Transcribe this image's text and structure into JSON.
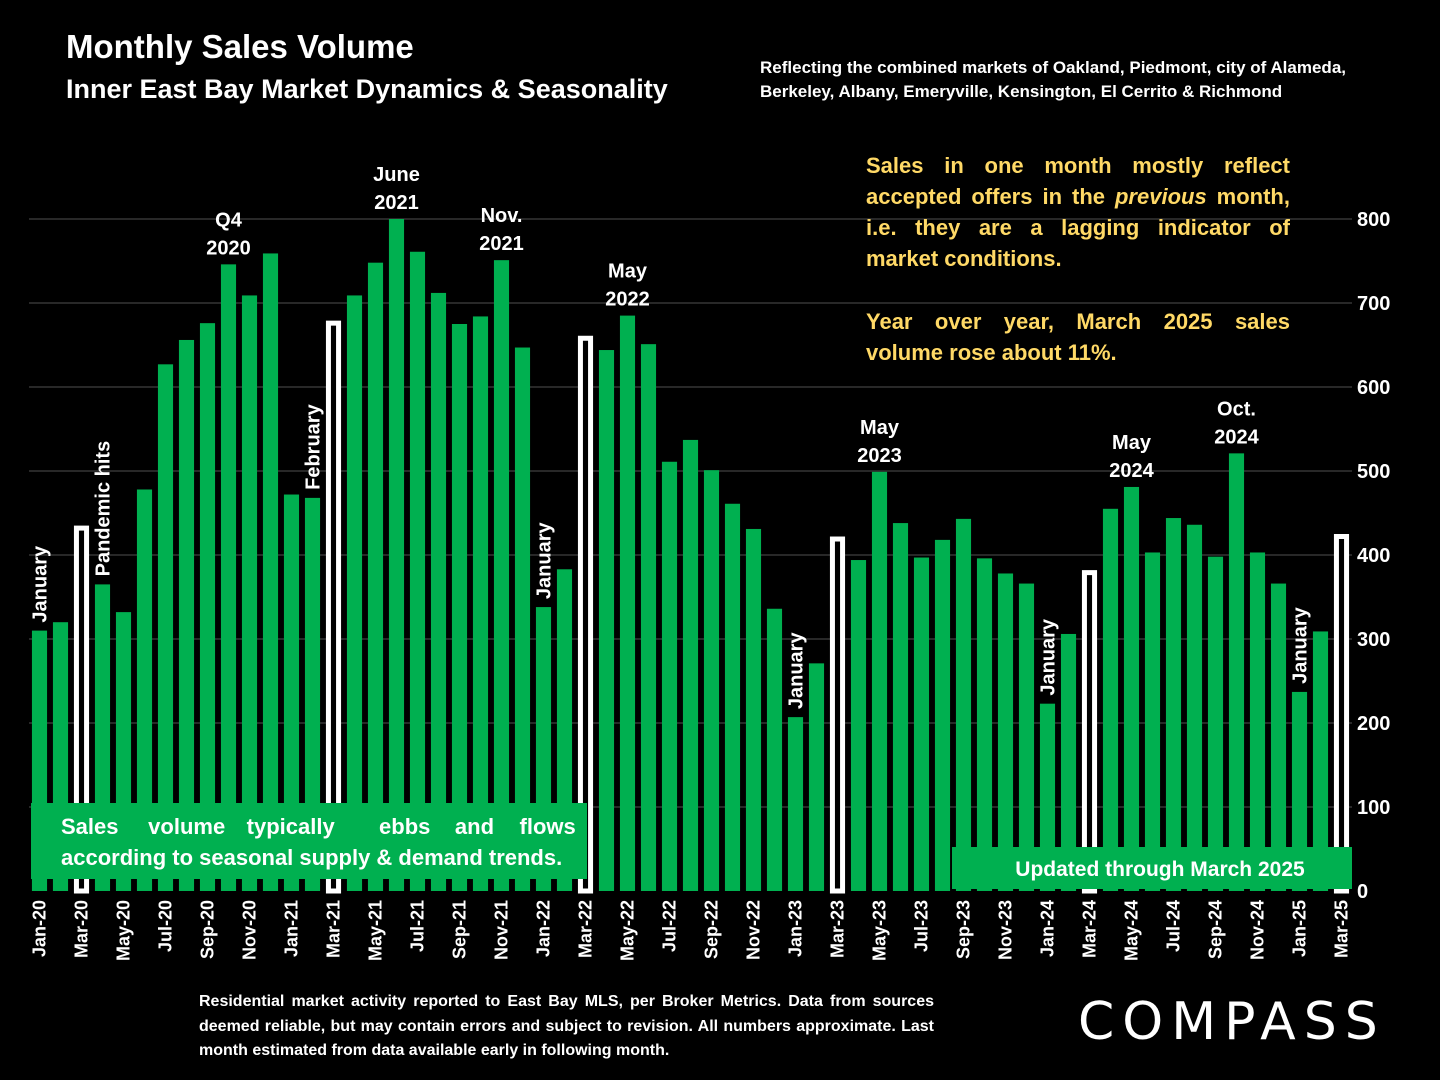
{
  "header": {
    "title": "Monthly Sales Volume",
    "subtitle": "Inner East Bay Market Dynamics & Seasonality",
    "coverage_note": "Reflecting the combined markets of Oakland, Piedmont, city of Alameda, Berkeley, Albany, Emeryville, Kensington, El Cerrito & Richmond"
  },
  "notes": {
    "lag_before": "Sales in one month mostly reflect accepted offers in the ",
    "lag_italic": "previous",
    "lag_after": " month, i.e. they are a lagging indicator of market conditions.",
    "yoy": "Year over year, March 2025 sales volume rose about 11%."
  },
  "footer": {
    "source": "Residential market activity reported to East Bay MLS, per Broker Metrics. Data from sources deemed reliable, but may contain errors and subject to revision. All numbers approximate. Last month estimated from data available early in following month.",
    "logo": "COMPASS"
  },
  "colors": {
    "bar": "#00B050",
    "highlight_outline": "#FFFFFF",
    "note_text": "#FFD966",
    "background": "#000000",
    "gridline": "#404040"
  },
  "chart_data": {
    "type": "bar",
    "ylim": [
      0,
      800
    ],
    "yticks": [
      0,
      100,
      200,
      300,
      400,
      500,
      600,
      700,
      800
    ],
    "grid": true,
    "y_axis_side": "right",
    "categories": [
      "Jan-20",
      "Feb-20",
      "Mar-20",
      "Apr-20",
      "May-20",
      "Jun-20",
      "Jul-20",
      "Aug-20",
      "Sep-20",
      "Oct-20",
      "Nov-20",
      "Dec-20",
      "Jan-21",
      "Feb-21",
      "Mar-21",
      "Apr-21",
      "May-21",
      "Jun-21",
      "Jul-21",
      "Aug-21",
      "Sep-21",
      "Oct-21",
      "Nov-21",
      "Dec-21",
      "Jan-22",
      "Feb-22",
      "Mar-22",
      "Apr-22",
      "May-22",
      "Jun-22",
      "Jul-22",
      "Aug-22",
      "Sep-22",
      "Oct-22",
      "Nov-22",
      "Dec-22",
      "Jan-23",
      "Feb-23",
      "Mar-23",
      "Apr-23",
      "May-23",
      "Jun-23",
      "Jul-23",
      "Aug-23",
      "Sep-23",
      "Oct-23",
      "Nov-23",
      "Dec-23",
      "Jan-24",
      "Feb-24",
      "Mar-24",
      "Apr-24",
      "May-24",
      "Jun-24",
      "Jul-24",
      "Aug-24",
      "Sep-24",
      "Oct-24",
      "Nov-24",
      "Dec-24",
      "Jan-25",
      "Feb-25",
      "Mar-25"
    ],
    "x_tick_labels": [
      "Jan-20",
      "Mar-20",
      "May-20",
      "Jul-20",
      "Sep-20",
      "Nov-20",
      "Jan-21",
      "Mar-21",
      "May-21",
      "Jul-21",
      "Sep-21",
      "Nov-21",
      "Jan-22",
      "Mar-22",
      "May-22",
      "Jul-22",
      "Sep-22",
      "Nov-22",
      "Jan-23",
      "Mar-23",
      "May-23",
      "Jul-23",
      "Sep-23",
      "Nov-23",
      "Jan-24",
      "Mar-24",
      "May-24",
      "Jul-24",
      "Sep-24",
      "Nov-24",
      "Jan-25",
      "Mar-25"
    ],
    "values": [
      310,
      320,
      435,
      365,
      332,
      478,
      627,
      656,
      676,
      746,
      709,
      759,
      472,
      468,
      679,
      709,
      748,
      800,
      761,
      712,
      675,
      684,
      751,
      647,
      338,
      383,
      661,
      644,
      685,
      651,
      511,
      537,
      501,
      461,
      431,
      336,
      207,
      271,
      422,
      394,
      499,
      438,
      397,
      418,
      443,
      396,
      378,
      366,
      223,
      306,
      382,
      455,
      481,
      403,
      444,
      436,
      398,
      521,
      403,
      366,
      237,
      309,
      425
    ],
    "highlighted_categories": [
      "Mar-20",
      "Mar-21",
      "Mar-22",
      "Mar-23",
      "Mar-24",
      "Mar-25"
    ],
    "annotations": [
      {
        "label": "January",
        "category": "Jan-20",
        "rotated": true
      },
      {
        "label": "Pandemic hits",
        "category": "Apr-20",
        "rotated": true
      },
      {
        "label": "Q4\n2020",
        "category": "Oct-20",
        "rotated": false
      },
      {
        "label": "February",
        "category": "Feb-21",
        "rotated": true
      },
      {
        "label": "June\n2021",
        "category": "Jun-21",
        "rotated": false
      },
      {
        "label": "Nov.\n2021",
        "category": "Nov-21",
        "rotated": false
      },
      {
        "label": "January",
        "category": "Jan-22",
        "rotated": true
      },
      {
        "label": "May\n2022",
        "category": "May-22",
        "rotated": false
      },
      {
        "label": "January",
        "category": "Jan-23",
        "rotated": true
      },
      {
        "label": "May\n2023",
        "category": "May-23",
        "rotated": false
      },
      {
        "label": "January",
        "category": "Jan-24",
        "rotated": true
      },
      {
        "label": "May\n2024",
        "category": "May-24",
        "rotated": false
      },
      {
        "label": "Oct.\n2024",
        "category": "Oct-24",
        "rotated": false
      },
      {
        "label": "January",
        "category": "Jan-25",
        "rotated": true
      }
    ],
    "callouts": {
      "seasonal": "Sales volume typically ebbs and flows according to seasonal supply & demand trends.",
      "updated": "Updated through March 2025"
    }
  }
}
